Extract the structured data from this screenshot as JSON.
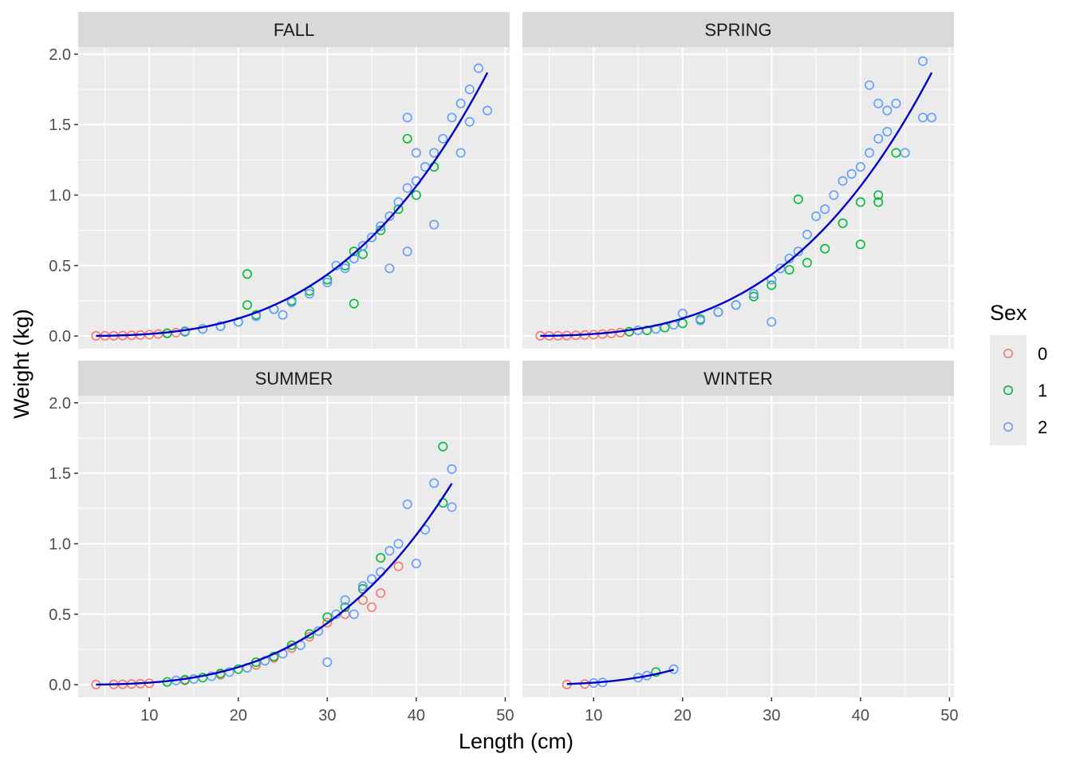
{
  "chart_data": {
    "type": "scatter",
    "xlabel": "Length (cm)",
    "ylabel": "Weight (kg)",
    "xlim": [
      2,
      50.5
    ],
    "ylim": [
      -0.09,
      2.05
    ],
    "x_ticks": [
      10,
      20,
      30,
      40,
      50
    ],
    "y_ticks": [
      0.0,
      0.5,
      1.0,
      1.5,
      2.0
    ],
    "y_tick_labels": [
      "0.0",
      "0.5",
      "1.0",
      "1.5",
      "2.0"
    ],
    "grid": true,
    "legend": {
      "title": "Sex",
      "position": "right",
      "entries": [
        {
          "label": "0",
          "color": "#F8766D"
        },
        {
          "label": "1",
          "color": "#00BA38"
        },
        {
          "label": "2",
          "color": "#619CFF"
        }
      ]
    },
    "fit_line_color": "#0000CD",
    "panels": [
      {
        "label": "FALL",
        "fit_curve": {
          "a": 1.17e-05,
          "b": 3.095,
          "x_range": [
            4,
            48
          ]
        },
        "series": [
          {
            "sex": "0",
            "points": [
              [
                4,
                0.001
              ],
              [
                5,
                0.001
              ],
              [
                6,
                0.002
              ],
              [
                7,
                0.003
              ],
              [
                8,
                0.005
              ],
              [
                9,
                0.007
              ],
              [
                10,
                0.01
              ],
              [
                11,
                0.014
              ],
              [
                12,
                0.018
              ],
              [
                13,
                0.024
              ],
              [
                14,
                0.03
              ]
            ]
          },
          {
            "sex": "1",
            "points": [
              [
                12,
                0.02
              ],
              [
                14,
                0.03
              ],
              [
                16,
                0.05
              ],
              [
                18,
                0.07
              ],
              [
                20,
                0.1
              ],
              [
                21,
                0.44
              ],
              [
                21,
                0.22
              ],
              [
                22,
                0.15
              ],
              [
                24,
                0.19
              ],
              [
                26,
                0.25
              ],
              [
                28,
                0.32
              ],
              [
                30,
                0.4
              ],
              [
                32,
                0.5
              ],
              [
                33,
                0.6
              ],
              [
                34,
                0.58
              ],
              [
                36,
                0.75
              ],
              [
                38,
                0.9
              ],
              [
                39,
                1.4
              ],
              [
                40,
                1.0
              ],
              [
                42,
                1.2
              ],
              [
                33,
                0.23
              ]
            ]
          },
          {
            "sex": "2",
            "points": [
              [
                14,
                0.035
              ],
              [
                16,
                0.05
              ],
              [
                18,
                0.07
              ],
              [
                20,
                0.1
              ],
              [
                22,
                0.14
              ],
              [
                24,
                0.19
              ],
              [
                25,
                0.15
              ],
              [
                26,
                0.24
              ],
              [
                28,
                0.3
              ],
              [
                30,
                0.38
              ],
              [
                31,
                0.5
              ],
              [
                32,
                0.48
              ],
              [
                33,
                0.55
              ],
              [
                34,
                0.64
              ],
              [
                35,
                0.7
              ],
              [
                36,
                0.78
              ],
              [
                37,
                0.85
              ],
              [
                37,
                0.48
              ],
              [
                38,
                0.95
              ],
              [
                39,
                1.05
              ],
              [
                39,
                1.55
              ],
              [
                39,
                0.6
              ],
              [
                40,
                1.1
              ],
              [
                40,
                1.3
              ],
              [
                41,
                1.2
              ],
              [
                42,
                1.3
              ],
              [
                42,
                0.79
              ],
              [
                43,
                1.4
              ],
              [
                44,
                1.55
              ],
              [
                45,
                1.65
              ],
              [
                45,
                1.3
              ],
              [
                46,
                1.75
              ],
              [
                46,
                1.52
              ],
              [
                47,
                1.9
              ],
              [
                48,
                1.6
              ]
            ]
          }
        ]
      },
      {
        "label": "SPRING",
        "fit_curve": {
          "a": 1.17e-05,
          "b": 3.095,
          "x_range": [
            4,
            48
          ]
        },
        "series": [
          {
            "sex": "0",
            "points": [
              [
                4,
                0.001
              ],
              [
                5,
                0.001
              ],
              [
                6,
                0.002
              ],
              [
                7,
                0.003
              ],
              [
                8,
                0.005
              ],
              [
                9,
                0.007
              ],
              [
                10,
                0.01
              ],
              [
                11,
                0.014
              ],
              [
                12,
                0.018
              ],
              [
                13,
                0.024
              ],
              [
                14,
                0.03
              ]
            ]
          },
          {
            "sex": "1",
            "points": [
              [
                14,
                0.03
              ],
              [
                16,
                0.04
              ],
              [
                18,
                0.06
              ],
              [
                20,
                0.09
              ],
              [
                22,
                0.12
              ],
              [
                24,
                0.17
              ],
              [
                26,
                0.22
              ],
              [
                28,
                0.28
              ],
              [
                30,
                0.36
              ],
              [
                32,
                0.47
              ],
              [
                33,
                0.97
              ],
              [
                34,
                0.52
              ],
              [
                36,
                0.62
              ],
              [
                38,
                0.8
              ],
              [
                40,
                0.95
              ],
              [
                40,
                0.65
              ],
              [
                42,
                1.0
              ],
              [
                42,
                0.95
              ],
              [
                44,
                1.3
              ]
            ]
          },
          {
            "sex": "2",
            "points": [
              [
                15,
                0.04
              ],
              [
                17,
                0.05
              ],
              [
                19,
                0.08
              ],
              [
                20,
                0.16
              ],
              [
                22,
                0.11
              ],
              [
                24,
                0.17
              ],
              [
                26,
                0.22
              ],
              [
                28,
                0.3
              ],
              [
                30,
                0.4
              ],
              [
                30,
                0.1
              ],
              [
                31,
                0.48
              ],
              [
                32,
                0.55
              ],
              [
                33,
                0.6
              ],
              [
                34,
                0.72
              ],
              [
                35,
                0.85
              ],
              [
                36,
                0.9
              ],
              [
                37,
                1.0
              ],
              [
                38,
                1.1
              ],
              [
                39,
                1.15
              ],
              [
                40,
                1.2
              ],
              [
                41,
                1.3
              ],
              [
                41,
                1.78
              ],
              [
                42,
                1.4
              ],
              [
                42,
                1.65
              ],
              [
                43,
                1.6
              ],
              [
                43,
                1.45
              ],
              [
                44,
                1.65
              ],
              [
                45,
                1.3
              ],
              [
                47,
                1.95
              ],
              [
                47,
                1.55
              ],
              [
                48,
                1.55
              ]
            ]
          }
        ]
      },
      {
        "label": "SUMMER",
        "fit_curve": {
          "a": 1.17e-05,
          "b": 3.095,
          "x_range": [
            4,
            44
          ]
        },
        "series": [
          {
            "sex": "0",
            "points": [
              [
                4,
                0.001
              ],
              [
                6,
                0.002
              ],
              [
                7,
                0.003
              ],
              [
                8,
                0.005
              ],
              [
                9,
                0.007
              ],
              [
                10,
                0.01
              ],
              [
                14,
                0.03
              ],
              [
                18,
                0.07
              ],
              [
                22,
                0.14
              ],
              [
                24,
                0.19
              ],
              [
                26,
                0.26
              ],
              [
                28,
                0.34
              ],
              [
                30,
                0.44
              ],
              [
                32,
                0.5
              ],
              [
                34,
                0.6
              ],
              [
                35,
                0.55
              ],
              [
                36,
                0.65
              ],
              [
                38,
                0.84
              ]
            ]
          },
          {
            "sex": "1",
            "points": [
              [
                12,
                0.02
              ],
              [
                14,
                0.035
              ],
              [
                16,
                0.05
              ],
              [
                18,
                0.08
              ],
              [
                20,
                0.11
              ],
              [
                22,
                0.16
              ],
              [
                24,
                0.2
              ],
              [
                26,
                0.28
              ],
              [
                28,
                0.36
              ],
              [
                30,
                0.48
              ],
              [
                32,
                0.55
              ],
              [
                34,
                0.68
              ],
              [
                36,
                0.9
              ],
              [
                43,
                1.69
              ],
              [
                43,
                1.29
              ]
            ]
          },
          {
            "sex": "2",
            "points": [
              [
                13,
                0.03
              ],
              [
                15,
                0.04
              ],
              [
                17,
                0.06
              ],
              [
                19,
                0.09
              ],
              [
                21,
                0.12
              ],
              [
                23,
                0.17
              ],
              [
                25,
                0.22
              ],
              [
                27,
                0.28
              ],
              [
                29,
                0.38
              ],
              [
                30,
                0.16
              ],
              [
                31,
                0.5
              ],
              [
                32,
                0.6
              ],
              [
                33,
                0.5
              ],
              [
                34,
                0.7
              ],
              [
                35,
                0.75
              ],
              [
                36,
                0.8
              ],
              [
                37,
                0.95
              ],
              [
                38,
                1.0
              ],
              [
                39,
                1.28
              ],
              [
                40,
                0.86
              ],
              [
                41,
                1.1
              ],
              [
                42,
                1.43
              ],
              [
                44,
                1.53
              ],
              [
                44,
                1.26
              ]
            ]
          }
        ]
      },
      {
        "label": "WINTER",
        "fit_curve": {
          "a": 1.17e-05,
          "b": 3.095,
          "x_range": [
            7,
            19
          ]
        },
        "series": [
          {
            "sex": "0",
            "points": [
              [
                7,
                0.002
              ],
              [
                9,
                0.005
              ]
            ]
          },
          {
            "sex": "1",
            "points": [
              [
                17,
                0.09
              ]
            ]
          },
          {
            "sex": "2",
            "points": [
              [
                10,
                0.012
              ],
              [
                11,
                0.016
              ],
              [
                15,
                0.05
              ],
              [
                16,
                0.065
              ],
              [
                19,
                0.11
              ]
            ]
          }
        ]
      }
    ]
  }
}
